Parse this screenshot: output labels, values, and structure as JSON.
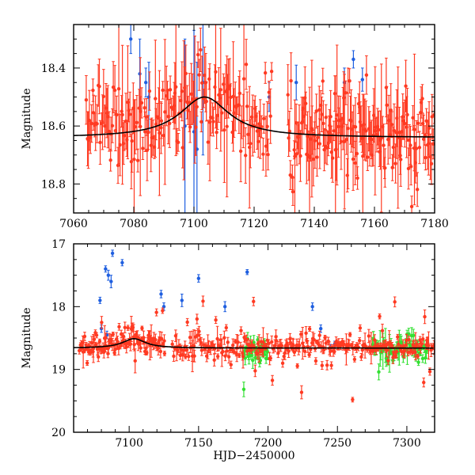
{
  "chart_data": [
    {
      "type": "scatter",
      "panel": "top",
      "xlabel": "",
      "ylabel": "Magnitude",
      "xlim": [
        7060,
        7180
      ],
      "ylim": [
        18.25,
        18.9
      ],
      "y_inverted": true,
      "xticks": [
        7060,
        7080,
        7100,
        7120,
        7140,
        7160,
        7180
      ],
      "xtick_labels": [
        "7060",
        "7080",
        "7100",
        "7120",
        "7140",
        "7160",
        "7180"
      ],
      "yticks": [
        18.4,
        18.6,
        18.8
      ],
      "ytick_labels": [
        "18.4",
        "18.6",
        "18.8"
      ],
      "series": [
        {
          "name": "red",
          "color": "#ff3a22",
          "segments": [
            [
              7064,
              7126,
              170
            ],
            [
              7131,
              7180,
              160
            ]
          ],
          "base": 18.62,
          "noise": 0.07,
          "err": 0.05
        },
        {
          "name": "blue",
          "color": "#1f5fe0",
          "points": [
            [
              7079,
              18.3,
              0.05
            ],
            [
              7082,
              18.42,
              0.12
            ],
            [
              7084,
              18.45,
              0.05
            ],
            [
              7085,
              18.5,
              0.12
            ],
            [
              7097,
              18.6,
              0.3
            ],
            [
              7100,
              18.62,
              0.35
            ],
            [
              7101,
              18.68,
              0.3
            ],
            [
              7103,
              18.45,
              0.25
            ],
            [
              7125,
              18.5,
              0.05
            ],
            [
              7134,
              18.45,
              0.06
            ],
            [
              7150,
              18.45,
              0.05
            ],
            [
              7153,
              18.37,
              0.03
            ],
            [
              7156,
              18.44,
              0.04
            ]
          ]
        },
        {
          "name": "model",
          "color": "#000000",
          "model": {
            "base": 18.64,
            "amp": 0.14,
            "peak": 7103.5,
            "width": 10
          }
        }
      ]
    },
    {
      "type": "scatter",
      "panel": "bottom",
      "xlabel": "HJD−2450000",
      "ylabel": "Magnitude",
      "xlim": [
        7060,
        7320
      ],
      "ylim": [
        17,
        20
      ],
      "y_inverted": true,
      "xticks": [
        7100,
        7150,
        7200,
        7250,
        7300
      ],
      "xtick_labels": [
        "7100",
        "7150",
        "7200",
        "7250",
        "7300"
      ],
      "yticks": [
        17,
        18,
        19,
        20
      ],
      "ytick_labels": [
        "17",
        "18",
        "19",
        "20"
      ],
      "series": [
        {
          "name": "red",
          "color": "#ff3a22",
          "segments": [
            [
              7064,
              7126,
              110
            ],
            [
              7131,
              7320,
              260
            ]
          ],
          "base": 18.65,
          "noise": 0.09,
          "err": 0.05
        },
        {
          "name": "green",
          "color": "#33e033",
          "segments": [
            [
              7182,
              7200,
              35
            ],
            [
              7275,
              7315,
              60
            ]
          ],
          "base": 18.7,
          "noise": 0.1,
          "err": 0.06
        },
        {
          "name": "blue",
          "color": "#1f5fe0",
          "points": [
            [
              7079,
              17.9,
              0.05
            ],
            [
              7083,
              17.4,
              0.05
            ],
            [
              7085,
              17.5,
              0.08
            ],
            [
              7087,
              17.6,
              0.1
            ],
            [
              7088,
              17.15,
              0.05
            ],
            [
              7095,
              17.3,
              0.05
            ],
            [
              7123,
              17.8,
              0.06
            ],
            [
              7125,
              18.0,
              0.06
            ],
            [
              7138,
              17.9,
              0.1
            ],
            [
              7150,
              17.55,
              0.06
            ],
            [
              7169,
              18.0,
              0.08
            ],
            [
              7185,
              17.45,
              0.04
            ],
            [
              7232,
              18.0,
              0.06
            ],
            [
              7238,
              18.35,
              0.06
            ],
            [
              7245,
              18.65,
              0.05
            ],
            [
              7248,
              18.6,
              0.05
            ],
            [
              7080,
              18.35,
              0.06
            ],
            [
              7084,
              18.45,
              0.06
            ]
          ]
        },
        {
          "name": "model",
          "color": "#000000",
          "model": {
            "base": 18.66,
            "amp": 0.15,
            "peak": 7103.5,
            "width": 10
          }
        }
      ]
    }
  ]
}
